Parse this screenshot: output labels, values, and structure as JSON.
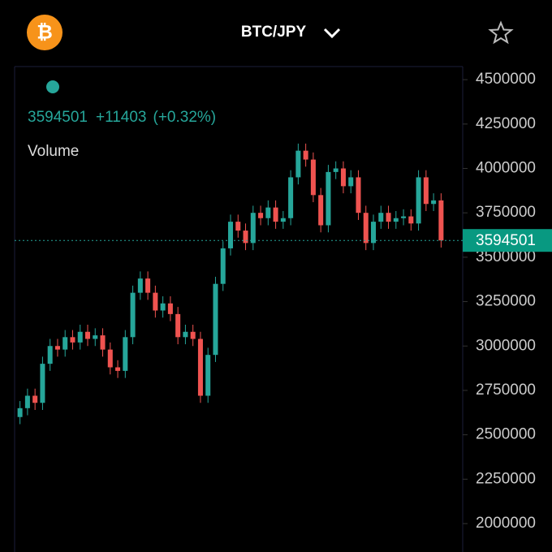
{
  "header": {
    "title": "BTC/JPY"
  },
  "chart_data": {
    "type": "candlestick",
    "legend": {
      "change": "+11403",
      "change_pct": "(+0.32%)",
      "volume_label": "Volume"
    },
    "up_color": "#26a69a",
    "down_color": "#ef5350",
    "open": [
      2600000,
      2650000,
      2720000,
      2680000,
      2900000,
      3000000,
      2980000,
      3050000,
      3020000,
      3080000,
      3040000,
      3060000,
      2980000,
      2880000,
      2860000,
      3050000,
      3300000,
      3380000,
      3300000,
      3200000,
      3240000,
      3180000,
      3050000,
      3080000,
      3040000,
      2720000,
      2950000,
      3350000,
      3550000,
      3700000,
      3650000,
      3580000,
      3750000,
      3720000,
      3780000,
      3700000,
      3720000,
      3950000,
      4100000,
      4050000,
      3850000,
      3680000,
      3980000,
      4000000,
      3900000,
      3950000,
      3750000,
      3580000,
      3700000,
      3750000,
      3700000,
      3720000,
      3730000,
      3690000,
      3950000,
      3800000,
      3820000
    ],
    "high": [
      2690000,
      2760000,
      2760000,
      2940000,
      3040000,
      3040000,
      3090000,
      3090000,
      3120000,
      3120000,
      3100000,
      3100000,
      3020000,
      2920000,
      3090000,
      3340000,
      3420000,
      3420000,
      3340000,
      3280000,
      3280000,
      3220000,
      3120000,
      3120000,
      3080000,
      2990000,
      3390000,
      3590000,
      3740000,
      3740000,
      3690000,
      3790000,
      3790000,
      3820000,
      3820000,
      3760000,
      3990000,
      4140000,
      4140000,
      4090000,
      3890000,
      4020000,
      4040000,
      4040000,
      3990000,
      3990000,
      3790000,
      3740000,
      3790000,
      3790000,
      3760000,
      3770000,
      3770000,
      3990000,
      3990000,
      3860000,
      3860000
    ],
    "low": [
      2560000,
      2610000,
      2640000,
      2640000,
      2860000,
      2940000,
      2940000,
      2980000,
      2980000,
      3000000,
      3000000,
      2940000,
      2840000,
      2820000,
      2820000,
      3010000,
      3260000,
      3260000,
      3160000,
      3160000,
      3140000,
      3010000,
      3010000,
      3000000,
      2680000,
      2680000,
      2910000,
      3310000,
      3510000,
      3610000,
      3540000,
      3540000,
      3680000,
      3680000,
      3660000,
      3660000,
      3680000,
      3910000,
      4010000,
      3810000,
      3640000,
      3640000,
      3940000,
      3860000,
      3860000,
      3710000,
      3540000,
      3540000,
      3660000,
      3660000,
      3660000,
      3680000,
      3650000,
      3650000,
      3760000,
      3760000,
      3554501
    ],
    "close": [
      2650000,
      2720000,
      2680000,
      2900000,
      3000000,
      2980000,
      3050000,
      3020000,
      3080000,
      3040000,
      3060000,
      2980000,
      2880000,
      2860000,
      3050000,
      3300000,
      3380000,
      3300000,
      3200000,
      3240000,
      3180000,
      3050000,
      3080000,
      3040000,
      2720000,
      2950000,
      3350000,
      3550000,
      3700000,
      3650000,
      3580000,
      3750000,
      3720000,
      3780000,
      3700000,
      3720000,
      3950000,
      4100000,
      4050000,
      3850000,
      3680000,
      3980000,
      4000000,
      3900000,
      3950000,
      3750000,
      3580000,
      3700000,
      3750000,
      3700000,
      3720000,
      3730000,
      3690000,
      3950000,
      3800000,
      3820000,
      3594501
    ],
    "ylim": [
      1840000,
      4560000
    ],
    "yticks": [
      2000000,
      2250000,
      2500000,
      2750000,
      3000000,
      3250000,
      3500000,
      3750000,
      4000000,
      4250000,
      4500000
    ]
  }
}
